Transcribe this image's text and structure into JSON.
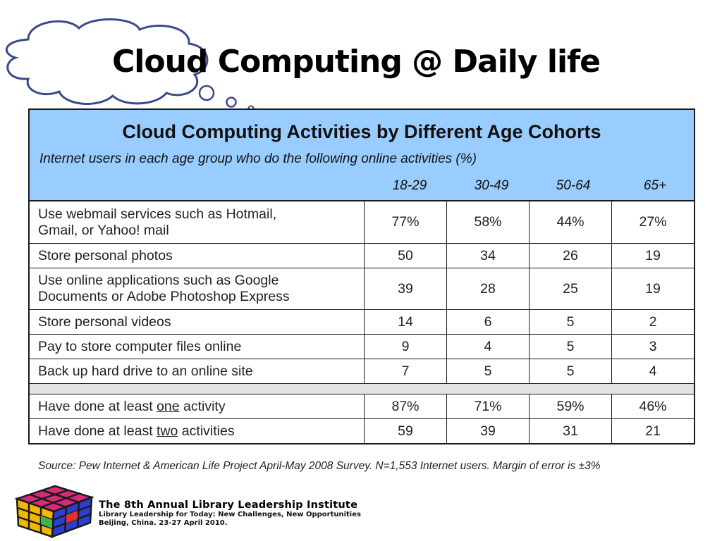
{
  "slide": {
    "title": "Cloud Computing @ Daily life"
  },
  "table": {
    "title": "Cloud Computing Activities by Different Age Cohorts",
    "subtitle": "Internet users in each age group who do the following online activities (%)",
    "age_groups": [
      "18-29",
      "30-49",
      "50-64",
      "65+"
    ],
    "rows": [
      {
        "activity_line1": "Use webmail services such as Hotmail,",
        "activity_line2": "Gmail, or Yahoo! mail",
        "values": [
          "77%",
          "58%",
          "44%",
          "27%"
        ]
      },
      {
        "activity": "Store personal photos",
        "values": [
          "50",
          "34",
          "26",
          "19"
        ]
      },
      {
        "activity_line1": "Use online applications such as Google",
        "activity_line2": "Documents or Adobe Photoshop Express",
        "values": [
          "39",
          "28",
          "25",
          "19"
        ]
      },
      {
        "activity": "Store personal videos",
        "values": [
          "14",
          "6",
          "5",
          "2"
        ]
      },
      {
        "activity": "Pay to store computer files online",
        "values": [
          "9",
          "4",
          "5",
          "3"
        ]
      },
      {
        "activity": "Back up hard drive to an online site",
        "values": [
          "7",
          "5",
          "5",
          "4"
        ]
      }
    ],
    "summary_rows": [
      {
        "prefix": "Have done at least ",
        "emphasis": "one",
        "suffix": " activity",
        "values": [
          "87%",
          "71%",
          "59%",
          "46%"
        ]
      },
      {
        "prefix": "Have done at least ",
        "emphasis": "two",
        "suffix": " activities",
        "values": [
          "59",
          "39",
          "31",
          "21"
        ]
      }
    ]
  },
  "source": {
    "text": "Source: Pew Internet & American Life Project April-May 2008 Survey. N=1,553 Internet users. Margin of error is ±3%"
  },
  "footer": {
    "institute_name": "The 8th Annual Library Leadership Institute",
    "line1": "Library Leadership for Today: New Challenges, New Opportunities",
    "line2": "Beijing, China. 23-27 April 2010."
  },
  "colors": {
    "header_bg": "#99ccff",
    "separator_bg": "#e2e2e2",
    "cloud_stroke": "#3a4a8a"
  }
}
